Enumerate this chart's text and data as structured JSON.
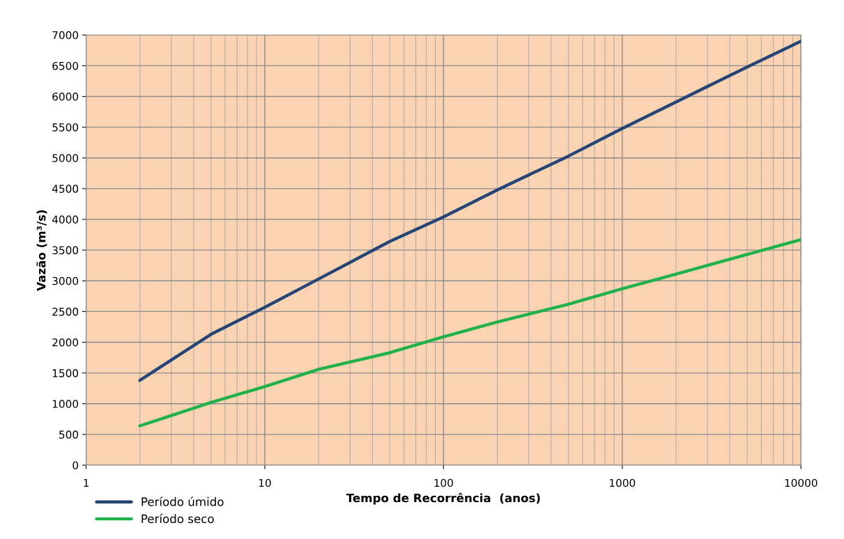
{
  "chart_data": {
    "type": "line",
    "xlabel": "Tempo de Recorrência  (anos)",
    "ylabel": "Vazão (m³/s)",
    "log": "x",
    "xlim": [
      1,
      10000
    ],
    "xticks": [
      1,
      10,
      100,
      1000,
      10000
    ],
    "ylim": [
      0,
      7000
    ],
    "yticks": [
      0,
      500,
      1000,
      1500,
      2000,
      2500,
      3000,
      3500,
      4000,
      4500,
      5000,
      5500,
      6000,
      6500,
      7000
    ],
    "grid": true,
    "legend": "bottom left",
    "marker": "none",
    "line_style": "solid",
    "series": [
      {
        "name": "Período úmido",
        "color": "#254577",
        "x": [
          2,
          5,
          10,
          20,
          50,
          100,
          200,
          500,
          1000,
          2000,
          5000,
          10000
        ],
        "values": [
          1380,
          2130,
          2570,
          3030,
          3640,
          4040,
          4480,
          5030,
          5480,
          5910,
          6480,
          6900
        ]
      },
      {
        "name": "Período seco",
        "color": "#1fb24a",
        "x": [
          2,
          5,
          10,
          20,
          50,
          100,
          200,
          500,
          1000,
          2000,
          5000,
          10000
        ],
        "values": [
          640,
          1020,
          1280,
          1560,
          1830,
          2090,
          2330,
          2620,
          2870,
          3110,
          3430,
          3670
        ]
      }
    ]
  }
}
